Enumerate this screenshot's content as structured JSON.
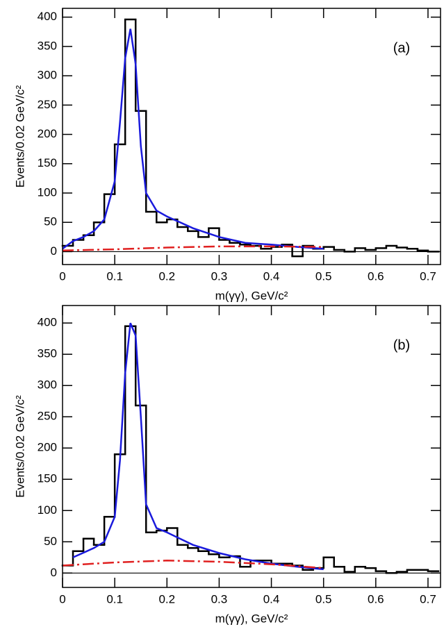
{
  "chart_data": [
    {
      "type": "histogram",
      "label": "(a)",
      "x_label": "m(γγ), GeV/c²",
      "y_label": "Events/0.02 GeV/c²",
      "bins": [
        0,
        0.02,
        0.04,
        0.06,
        0.08,
        0.1,
        0.12,
        0.14,
        0.16,
        0.18,
        0.2,
        0.22,
        0.24,
        0.26,
        0.28,
        0.3,
        0.32,
        0.34,
        0.36,
        0.38,
        0.4,
        0.42,
        0.44,
        0.46,
        0.48,
        0.5,
        0.52,
        0.54,
        0.56,
        0.58,
        0.6,
        0.62,
        0.64,
        0.66,
        0.68,
        0.7,
        0.72
      ],
      "counts": [
        10,
        20,
        28,
        50,
        98,
        183,
        396,
        240,
        68,
        50,
        55,
        42,
        35,
        25,
        40,
        20,
        15,
        12,
        10,
        5,
        8,
        12,
        -8,
        10,
        5,
        8,
        3,
        0,
        6,
        3,
        6,
        10,
        7,
        5,
        2,
        0
      ],
      "color": "#000000",
      "curves": [
        {
          "color": "#1a1adc",
          "dash": false,
          "x": [
            0,
            0.02,
            0.04,
            0.06,
            0.08,
            0.1,
            0.11,
            0.12,
            0.13,
            0.14,
            0.15,
            0.16,
            0.18,
            0.2,
            0.25,
            0.3,
            0.35,
            0.4,
            0.45,
            0.5
          ],
          "values": [
            5,
            18,
            25,
            35,
            55,
            120,
            220,
            330,
            380,
            320,
            180,
            100,
            70,
            60,
            40,
            25,
            15,
            12,
            8,
            5
          ]
        },
        {
          "color": "#e02020",
          "dash": true,
          "x": [
            0,
            0.1,
            0.2,
            0.3,
            0.4,
            0.5
          ],
          "values": [
            2,
            4,
            7,
            9,
            9,
            8
          ]
        }
      ],
      "xlim": [
        0,
        0.724
      ],
      "xticks": [
        0,
        0.1,
        0.2,
        0.3,
        0.4,
        0.5,
        0.6,
        0.7
      ],
      "ylim": [
        -22,
        415
      ],
      "yticks": [
        0,
        50,
        100,
        150,
        200,
        250,
        300,
        350,
        400
      ]
    },
    {
      "type": "histogram",
      "label": "(b)",
      "x_label": "m(γγ), GeV/c²",
      "y_label": "Events/0.02 GeV/c²",
      "bins": [
        0,
        0.02,
        0.04,
        0.06,
        0.08,
        0.1,
        0.12,
        0.14,
        0.16,
        0.18,
        0.2,
        0.22,
        0.24,
        0.26,
        0.28,
        0.3,
        0.32,
        0.34,
        0.36,
        0.38,
        0.4,
        0.42,
        0.44,
        0.46,
        0.48,
        0.5,
        0.52,
        0.54,
        0.56,
        0.58,
        0.6,
        0.62,
        0.64,
        0.66,
        0.68,
        0.7,
        0.72
      ],
      "counts": [
        12,
        35,
        55,
        45,
        90,
        190,
        395,
        268,
        65,
        68,
        72,
        45,
        40,
        35,
        30,
        25,
        27,
        10,
        20,
        20,
        15,
        15,
        12,
        5,
        8,
        25,
        10,
        2,
        10,
        8,
        3,
        0,
        2,
        5,
        5,
        3
      ],
      "color": "#000000",
      "curves": [
        {
          "color": "#1a1adc",
          "dash": false,
          "x": [
            0.02,
            0.06,
            0.08,
            0.1,
            0.11,
            0.12,
            0.13,
            0.14,
            0.15,
            0.16,
            0.18,
            0.2,
            0.25,
            0.3,
            0.35,
            0.4,
            0.45,
            0.5
          ],
          "values": [
            25,
            40,
            50,
            90,
            180,
            320,
            400,
            380,
            250,
            110,
            72,
            65,
            45,
            32,
            22,
            15,
            10,
            6
          ]
        },
        {
          "color": "#e02020",
          "dash": true,
          "x": [
            0,
            0.1,
            0.2,
            0.3,
            0.4,
            0.5
          ],
          "values": [
            12,
            17,
            20,
            18,
            14,
            8
          ]
        }
      ],
      "xlim": [
        0,
        0.724
      ],
      "xticks": [
        0,
        0.1,
        0.2,
        0.3,
        0.4,
        0.5,
        0.6,
        0.7
      ],
      "ylim": [
        -23,
        428
      ],
      "yticks": [
        0,
        50,
        100,
        150,
        200,
        250,
        300,
        350,
        400
      ]
    }
  ]
}
